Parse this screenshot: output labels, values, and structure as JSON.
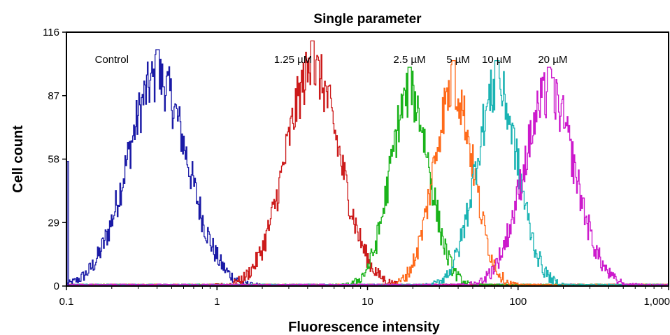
{
  "chart_data": {
    "type": "line",
    "title": "Single parameter",
    "xlabel": "Fluorescence intensity",
    "ylabel": "Cell count",
    "x_scale": "log",
    "xlim": [
      0.1,
      1000
    ],
    "ylim": [
      0,
      116
    ],
    "x_ticks": [
      {
        "value": 0.1,
        "label": "0.1"
      },
      {
        "value": 1,
        "label": "1"
      },
      {
        "value": 10,
        "label": "10"
      },
      {
        "value": 100,
        "label": "100"
      },
      {
        "value": 1000,
        "label": "1,000"
      }
    ],
    "y_ticks": [
      {
        "value": 0,
        "label": "0"
      },
      {
        "value": 29,
        "label": "29"
      },
      {
        "value": 58,
        "label": "58"
      },
      {
        "value": 87,
        "label": "87"
      },
      {
        "value": 116,
        "label": "116"
      }
    ],
    "grid": false,
    "legend": "none",
    "series": [
      {
        "name": "Control",
        "color": "#1a1aa6",
        "peak_x": 0.4,
        "peak_y": 108,
        "sigma_log10": 0.2,
        "label_x": 0.2,
        "label_y": 102
      },
      {
        "name": "1.25 µM",
        "color": "#cc1a1a",
        "peak_x": 4.3,
        "peak_y": 112,
        "sigma_log10": 0.18,
        "label_x": 3.2,
        "label_y": 102
      },
      {
        "name": "2.5 µM",
        "color": "#1ab31a",
        "peak_x": 19,
        "peak_y": 100,
        "sigma_log10": 0.13,
        "label_x": 19,
        "label_y": 102
      },
      {
        "name": "5 µM",
        "color": "#ff6a1a",
        "peak_x": 37,
        "peak_y": 103,
        "sigma_log10": 0.13,
        "label_x": 40,
        "label_y": 102
      },
      {
        "name": "10 µM",
        "color": "#1ab3b3",
        "peak_x": 72,
        "peak_y": 103,
        "sigma_log10": 0.14,
        "label_x": 72,
        "label_y": 102
      },
      {
        "name": "20 µM",
        "color": "#cc1acc",
        "peak_x": 160,
        "peak_y": 100,
        "sigma_log10": 0.17,
        "label_x": 170,
        "label_y": 102
      }
    ]
  }
}
